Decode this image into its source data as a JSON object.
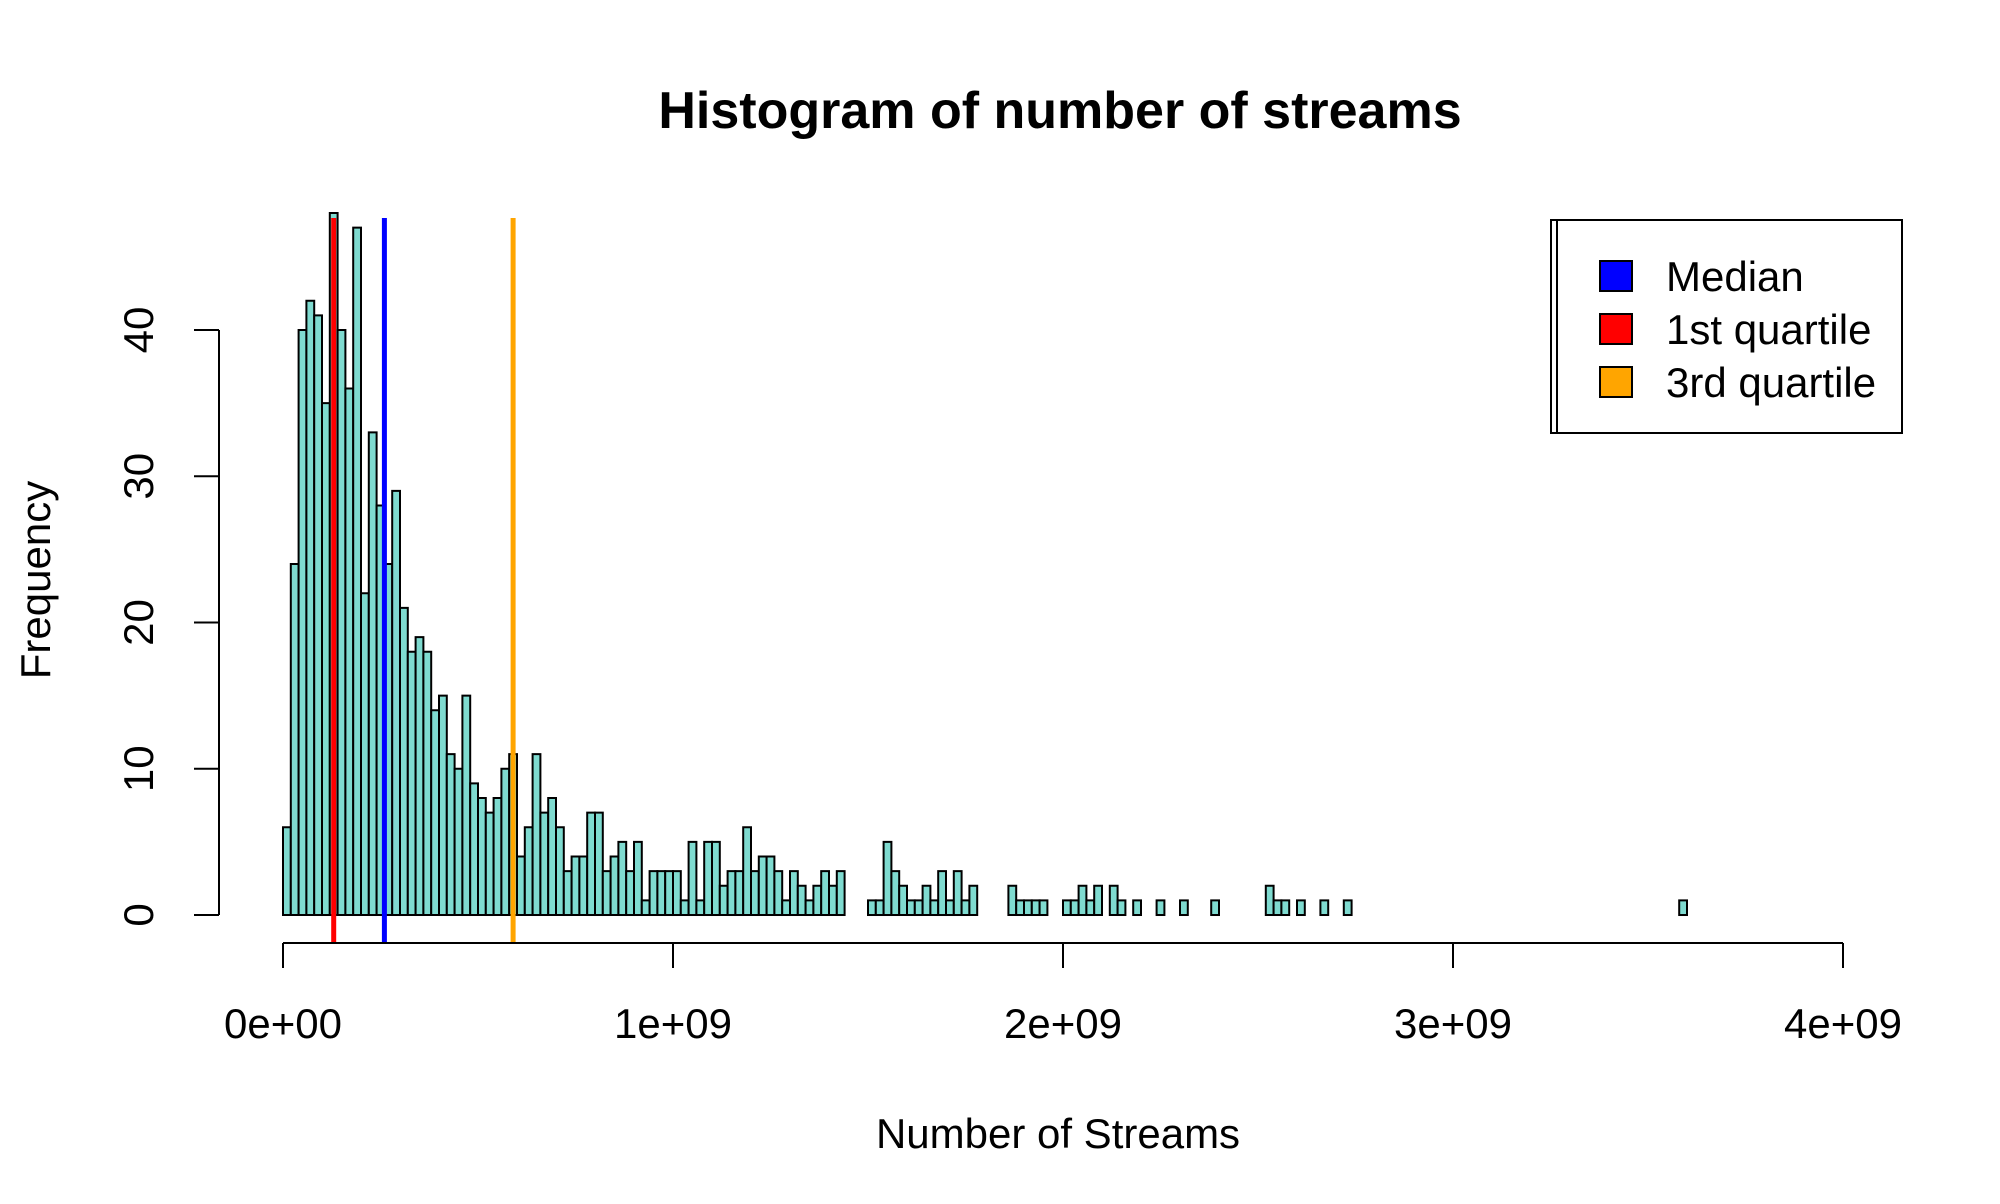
{
  "chart_data": {
    "type": "bar",
    "title": "Histogram of number of streams",
    "xlabel": "Number of Streams",
    "ylabel": "Frequency",
    "xlim": [
      0,
      4000000000
    ],
    "ylim": [
      0,
      48
    ],
    "x_ticks": [
      0,
      1000000000,
      2000000000,
      3000000000,
      4000000000
    ],
    "x_tick_labels": [
      "0e+00",
      "1e+09",
      "2e+09",
      "3e+09",
      "4e+09"
    ],
    "y_ticks": [
      0,
      10,
      20,
      30,
      40
    ],
    "y_tick_labels": [
      "0",
      "10",
      "20",
      "30",
      "40"
    ],
    "bin_width": 20000000,
    "bin_start": 0,
    "counts": [
      6,
      24,
      40,
      42,
      41,
      35,
      48,
      40,
      36,
      47,
      22,
      33,
      28,
      24,
      29,
      21,
      18,
      19,
      18,
      14,
      15,
      11,
      10,
      15,
      9,
      8,
      7,
      8,
      10,
      11,
      4,
      6,
      11,
      7,
      8,
      6,
      3,
      4,
      4,
      7,
      7,
      3,
      4,
      5,
      3,
      5,
      1,
      3,
      3,
      3,
      3,
      1,
      5,
      1,
      5,
      5,
      2,
      3,
      3,
      6,
      3,
      4,
      4,
      3,
      1,
      3,
      2,
      1,
      2,
      3,
      2,
      3,
      0,
      0,
      0,
      1,
      1,
      5,
      3,
      2,
      1,
      1,
      2,
      1,
      3,
      1,
      3,
      1,
      2,
      0,
      0,
      0,
      0,
      2,
      1,
      1,
      1,
      1,
      0,
      0,
      1,
      1,
      2,
      1,
      2,
      0,
      2,
      1,
      0,
      1,
      0,
      0,
      1,
      0,
      0,
      1,
      0,
      0,
      0,
      1,
      0,
      0,
      0,
      0,
      0,
      0,
      2,
      1,
      1,
      0,
      1,
      0,
      0,
      1,
      0,
      0,
      1,
      0,
      0,
      0,
      0,
      0,
      0,
      0,
      0,
      0,
      0,
      0,
      0,
      0,
      0,
      0,
      0,
      0,
      0,
      0,
      0,
      0,
      0,
      0,
      0,
      0,
      0,
      0,
      0,
      0,
      0,
      0,
      0,
      0,
      0,
      0,
      0,
      0,
      0,
      0,
      0,
      0,
      0,
      1
    ],
    "bar_color": "#7fdbd0",
    "bar_edge_color": "#000000",
    "vlines": [
      {
        "name": "1st quartile",
        "x": 130000000,
        "color": "#ff0000"
      },
      {
        "name": "Median",
        "x": 260000000,
        "color": "#0000ff"
      },
      {
        "name": "3rd quartile",
        "x": 590000000,
        "color": "#ffa500"
      }
    ],
    "legend": {
      "position": "top-right",
      "entries": [
        {
          "label": "Median",
          "color": "#0000ff"
        },
        {
          "label": "1st quartile",
          "color": "#ff0000"
        },
        {
          "label": "3rd quartile",
          "color": "#ffa500"
        }
      ]
    },
    "grid": false
  }
}
